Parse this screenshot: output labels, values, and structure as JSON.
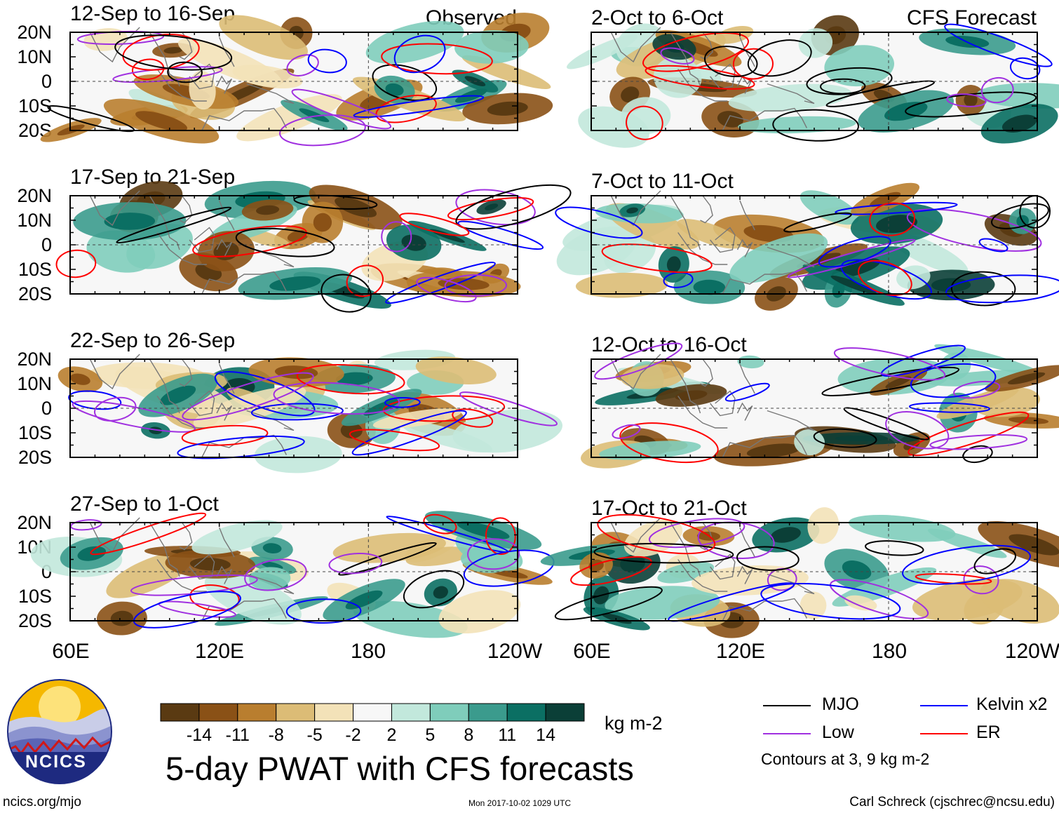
{
  "chart_data": {
    "type": "heatmap",
    "title": "5-day PWAT with CFS forecasts",
    "variable": "precipitable water anomaly",
    "units": "kg m-2",
    "columns": [
      {
        "name": "Observed",
        "panels": [
          {
            "title": "12-Sep to 16-Sep"
          },
          {
            "title": "17-Sep to 21-Sep"
          },
          {
            "title": "22-Sep to 26-Sep"
          },
          {
            "title": "27-Sep to 1-Oct"
          }
        ]
      },
      {
        "name": "CFS Forecast",
        "panels": [
          {
            "title": "2-Oct to 6-Oct"
          },
          {
            "title": "7-Oct to 11-Oct"
          },
          {
            "title": "12-Oct to 16-Oct"
          },
          {
            "title": "17-Oct to 21-Oct"
          }
        ]
      }
    ],
    "y_ticks": [
      "20N",
      "10N",
      "0",
      "10S",
      "20S"
    ],
    "ylim": [
      -20,
      20
    ],
    "x_ticks": [
      "60E",
      "120E",
      "180",
      "120W"
    ],
    "xlim": [
      60,
      240
    ],
    "colorbar": {
      "boundaries": [
        "-14",
        "-11",
        "-8",
        "-5",
        "-2",
        "2",
        "5",
        "8",
        "11",
        "14"
      ],
      "colors": [
        "#5a3a12",
        "#8a5116",
        "#b97e2f",
        "#dcbc76",
        "#f3e2b8",
        "#f7f7f7",
        "#c2e8dc",
        "#7fcdbb",
        "#3b9b8d",
        "#0b6f63",
        "#0b3f37"
      ],
      "units": "kg m-2"
    },
    "legend": [
      {
        "label": "MJO",
        "color": "#000000"
      },
      {
        "label": "Kelvin x2",
        "color": "#0000ff"
      },
      {
        "label": "Low",
        "color": "#a030e0"
      },
      {
        "label": "ER",
        "color": "#ff0000"
      }
    ],
    "legend_note": "Contours at 3, 9 kg m-2"
  },
  "logo": {
    "text": "NCICS"
  },
  "footer": {
    "left": "ncics.org/mjo",
    "center": "Mon 2017-10-02 1029 UTC",
    "right": "Carl Schreck (cjschrec@ncsu.edu)"
  }
}
